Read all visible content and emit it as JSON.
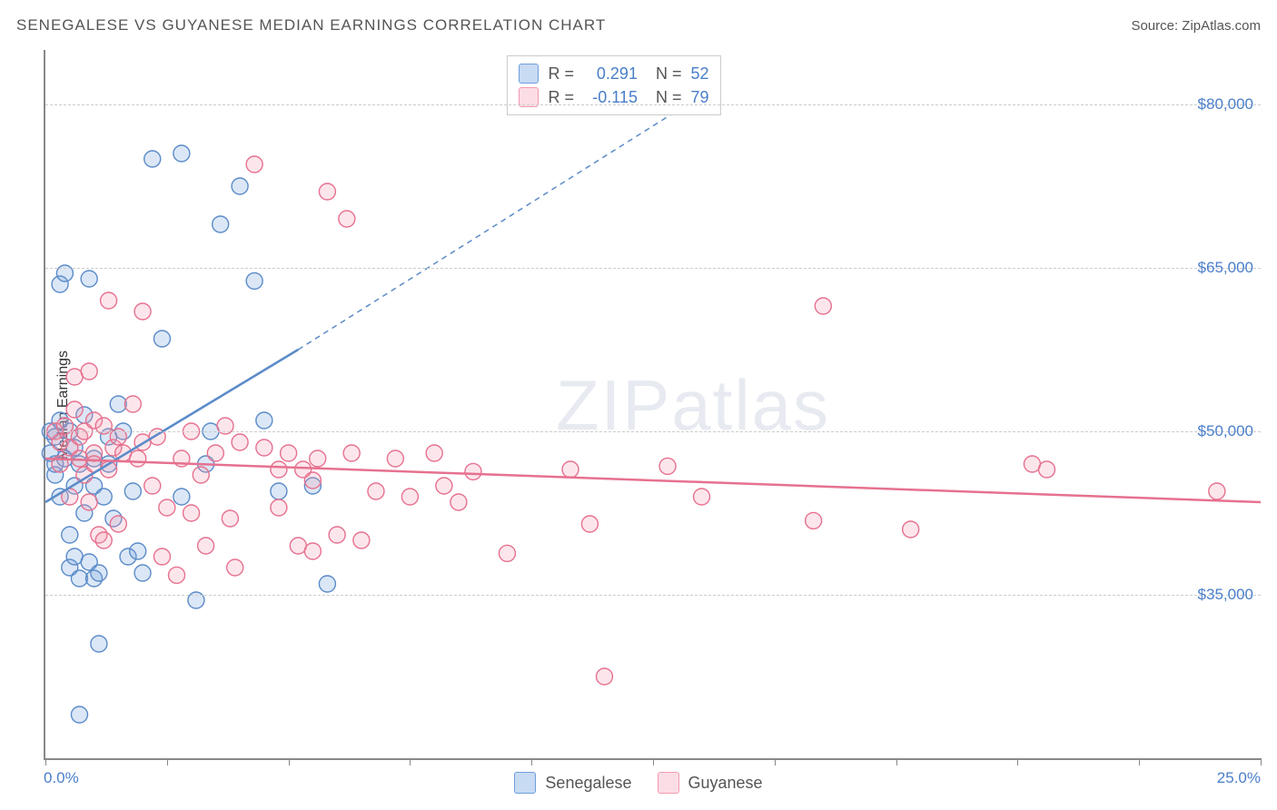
{
  "header": {
    "title": "SENEGALESE VS GUYANESE MEDIAN EARNINGS CORRELATION CHART",
    "source": "Source: ZipAtlas.com"
  },
  "chart": {
    "type": "scatter",
    "ylabel": "Median Earnings",
    "xlim": [
      0,
      25
    ],
    "ylim": [
      20000,
      85000
    ],
    "xtick_positions": [
      0,
      2.5,
      5,
      7.5,
      10,
      12.5,
      15,
      17.5,
      20,
      22.5,
      25
    ],
    "xtick_labels": {
      "first": "0.0%",
      "last": "25.0%"
    },
    "ytick_positions": [
      35000,
      50000,
      65000,
      80000
    ],
    "ytick_labels": [
      "$35,000",
      "$50,000",
      "$65,000",
      "$80,000"
    ],
    "grid_color": "#cccccc",
    "axis_color": "#888888",
    "background_color": "#ffffff",
    "marker_radius": 9,
    "marker_fill_opacity": 0.25,
    "marker_stroke_width": 1.4,
    "series": [
      {
        "name": "Senegalese",
        "color": "#6f9edb",
        "stroke": "#5b8bc9",
        "r_value": "0.291",
        "n_value": "52",
        "trend": {
          "solid": {
            "x1": 0,
            "y1": 43500,
            "x2": 5.2,
            "y2": 57500
          },
          "dashed": {
            "x1": 5.2,
            "y1": 57500,
            "x2": 13.2,
            "y2": 80000
          }
        },
        "points": [
          [
            0.1,
            50000
          ],
          [
            0.1,
            48000
          ],
          [
            0.2,
            46000
          ],
          [
            0.2,
            47000
          ],
          [
            0.2,
            49500
          ],
          [
            0.3,
            44000
          ],
          [
            0.3,
            51000
          ],
          [
            0.3,
            63500
          ],
          [
            0.4,
            64500
          ],
          [
            0.4,
            47500
          ],
          [
            0.5,
            40500
          ],
          [
            0.5,
            50000
          ],
          [
            0.5,
            37500
          ],
          [
            0.6,
            45000
          ],
          [
            0.6,
            48500
          ],
          [
            0.6,
            38500
          ],
          [
            0.7,
            36500
          ],
          [
            0.7,
            47000
          ],
          [
            0.8,
            51500
          ],
          [
            0.8,
            42500
          ],
          [
            0.9,
            38000
          ],
          [
            0.9,
            64000
          ],
          [
            1.0,
            47500
          ],
          [
            1.0,
            45000
          ],
          [
            1.0,
            36500
          ],
          [
            1.1,
            37000
          ],
          [
            1.1,
            30500
          ],
          [
            1.2,
            44000
          ],
          [
            1.3,
            47000
          ],
          [
            1.3,
            49500
          ],
          [
            1.4,
            42000
          ],
          [
            1.5,
            52500
          ],
          [
            1.6,
            50000
          ],
          [
            1.7,
            38500
          ],
          [
            1.8,
            44500
          ],
          [
            1.9,
            39000
          ],
          [
            2.0,
            37000
          ],
          [
            2.2,
            75000
          ],
          [
            2.4,
            58500
          ],
          [
            2.8,
            44000
          ],
          [
            3.1,
            34500
          ],
          [
            3.3,
            47000
          ],
          [
            3.4,
            50000
          ],
          [
            3.6,
            69000
          ],
          [
            4.0,
            72500
          ],
          [
            4.3,
            63800
          ],
          [
            4.5,
            51000
          ],
          [
            4.8,
            44500
          ],
          [
            5.5,
            45000
          ],
          [
            5.8,
            36000
          ],
          [
            0.7,
            24000
          ],
          [
            2.8,
            75500
          ]
        ]
      },
      {
        "name": "Guyanese",
        "color": "#f29ab1",
        "stroke": "#e6718f",
        "r_value": "-0.115",
        "n_value": "79",
        "trend": {
          "solid": {
            "x1": 0,
            "y1": 47500,
            "x2": 25,
            "y2": 43500
          },
          "dashed": null
        },
        "points": [
          [
            0.2,
            50000
          ],
          [
            0.3,
            49000
          ],
          [
            0.3,
            47000
          ],
          [
            0.4,
            50500
          ],
          [
            0.5,
            44000
          ],
          [
            0.5,
            48500
          ],
          [
            0.6,
            55000
          ],
          [
            0.6,
            52000
          ],
          [
            0.7,
            49500
          ],
          [
            0.7,
            47500
          ],
          [
            0.8,
            46000
          ],
          [
            0.8,
            50000
          ],
          [
            0.9,
            55500
          ],
          [
            0.9,
            43500
          ],
          [
            1.0,
            48000
          ],
          [
            1.0,
            47000
          ],
          [
            1.0,
            51000
          ],
          [
            1.1,
            40500
          ],
          [
            1.2,
            50500
          ],
          [
            1.2,
            40000
          ],
          [
            1.3,
            62000
          ],
          [
            1.3,
            46500
          ],
          [
            1.4,
            48500
          ],
          [
            1.5,
            49500
          ],
          [
            1.5,
            41500
          ],
          [
            1.6,
            48000
          ],
          [
            1.8,
            52500
          ],
          [
            1.9,
            47500
          ],
          [
            2.0,
            61000
          ],
          [
            2.0,
            49000
          ],
          [
            2.2,
            45000
          ],
          [
            2.3,
            49500
          ],
          [
            2.4,
            38500
          ],
          [
            2.5,
            43000
          ],
          [
            2.7,
            36800
          ],
          [
            2.8,
            47500
          ],
          [
            3.0,
            50000
          ],
          [
            3.0,
            42500
          ],
          [
            3.2,
            46000
          ],
          [
            3.3,
            39500
          ],
          [
            3.5,
            48000
          ],
          [
            3.7,
            50500
          ],
          [
            3.8,
            42000
          ],
          [
            4.0,
            49000
          ],
          [
            4.3,
            74500
          ],
          [
            4.5,
            48500
          ],
          [
            4.8,
            46500
          ],
          [
            4.8,
            43000
          ],
          [
            5.0,
            48000
          ],
          [
            5.2,
            39500
          ],
          [
            5.3,
            46500
          ],
          [
            5.5,
            39000
          ],
          [
            5.5,
            45500
          ],
          [
            5.6,
            47500
          ],
          [
            5.8,
            72000
          ],
          [
            6.0,
            40500
          ],
          [
            6.2,
            69500
          ],
          [
            6.3,
            48000
          ],
          [
            6.5,
            40000
          ],
          [
            6.8,
            44500
          ],
          [
            7.2,
            47500
          ],
          [
            7.5,
            44000
          ],
          [
            8.0,
            48000
          ],
          [
            8.2,
            45000
          ],
          [
            8.5,
            43500
          ],
          [
            8.8,
            46300
          ],
          [
            9.5,
            38800
          ],
          [
            10.8,
            46500
          ],
          [
            11.2,
            41500
          ],
          [
            11.5,
            27500
          ],
          [
            12.8,
            46800
          ],
          [
            13.5,
            44000
          ],
          [
            15.8,
            41800
          ],
          [
            16.0,
            61500
          ],
          [
            17.8,
            41000
          ],
          [
            20.3,
            47000
          ],
          [
            20.6,
            46500
          ],
          [
            24.1,
            44500
          ],
          [
            3.9,
            37500
          ]
        ]
      }
    ],
    "legend_bottom": [
      {
        "label": "Senegalese",
        "fill": "#c7dbf3",
        "stroke": "#6f9edb"
      },
      {
        "label": "Guyanese",
        "fill": "#fcdde5",
        "stroke": "#f29ab1"
      }
    ],
    "legend_top_swatches": [
      {
        "fill": "#c7dbf3",
        "stroke": "#6f9edb"
      },
      {
        "fill": "#fcdde5",
        "stroke": "#f29ab1"
      }
    ],
    "watermark": {
      "zip": "ZIP",
      "atlas": "atlas"
    }
  }
}
